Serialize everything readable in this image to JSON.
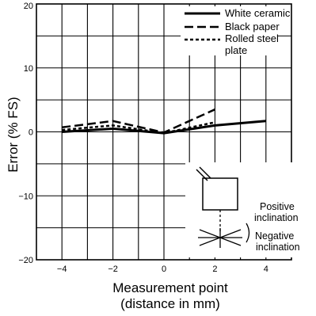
{
  "chart_data": {
    "type": "line",
    "title": "",
    "xlabel_lines": [
      "Measurement point",
      "(distance in mm)"
    ],
    "ylabel": "Error (% FS)",
    "xlim": [
      -5,
      5
    ],
    "ylim": [
      -20,
      20
    ],
    "x_ticks": [
      -4,
      -2,
      0,
      2,
      4
    ],
    "y_ticks": [
      -20,
      -10,
      0,
      10,
      20
    ],
    "x_tick_labels": [
      "−4",
      "−2",
      "0",
      "2",
      "4"
    ],
    "y_tick_labels": [
      "−20",
      "−10",
      "0",
      "10",
      "20"
    ],
    "grid": true,
    "legend_position": "top-right",
    "series": [
      {
        "name": "White ceramic",
        "style": "solid",
        "x": [
          -4,
          -2,
          0,
          2,
          4
        ],
        "y": [
          0,
          0.5,
          -0.2,
          1.0,
          1.7
        ]
      },
      {
        "name": "Black paper",
        "style": "dashed",
        "x": [
          -4,
          -2,
          0,
          2
        ],
        "y": [
          0.7,
          1.7,
          -0.1,
          3.5
        ]
      },
      {
        "name": "Rolled steel plate",
        "name_lines": [
          "Rolled steel",
          "plate"
        ],
        "style": "dotted",
        "x": [
          -4,
          -2,
          0,
          2
        ],
        "y": [
          0.3,
          1.0,
          -0.2,
          1.5
        ]
      }
    ],
    "annotations": {
      "positive_label": "Positive inclination",
      "positive_lines": [
        "Positive",
        "inclination"
      ],
      "negative_label": "Negative inclination",
      "negative_lines": [
        "Negative",
        "inclination"
      ]
    },
    "colors": {
      "line": "#000000",
      "grid": "#000000",
      "background": "#ffffff"
    }
  }
}
